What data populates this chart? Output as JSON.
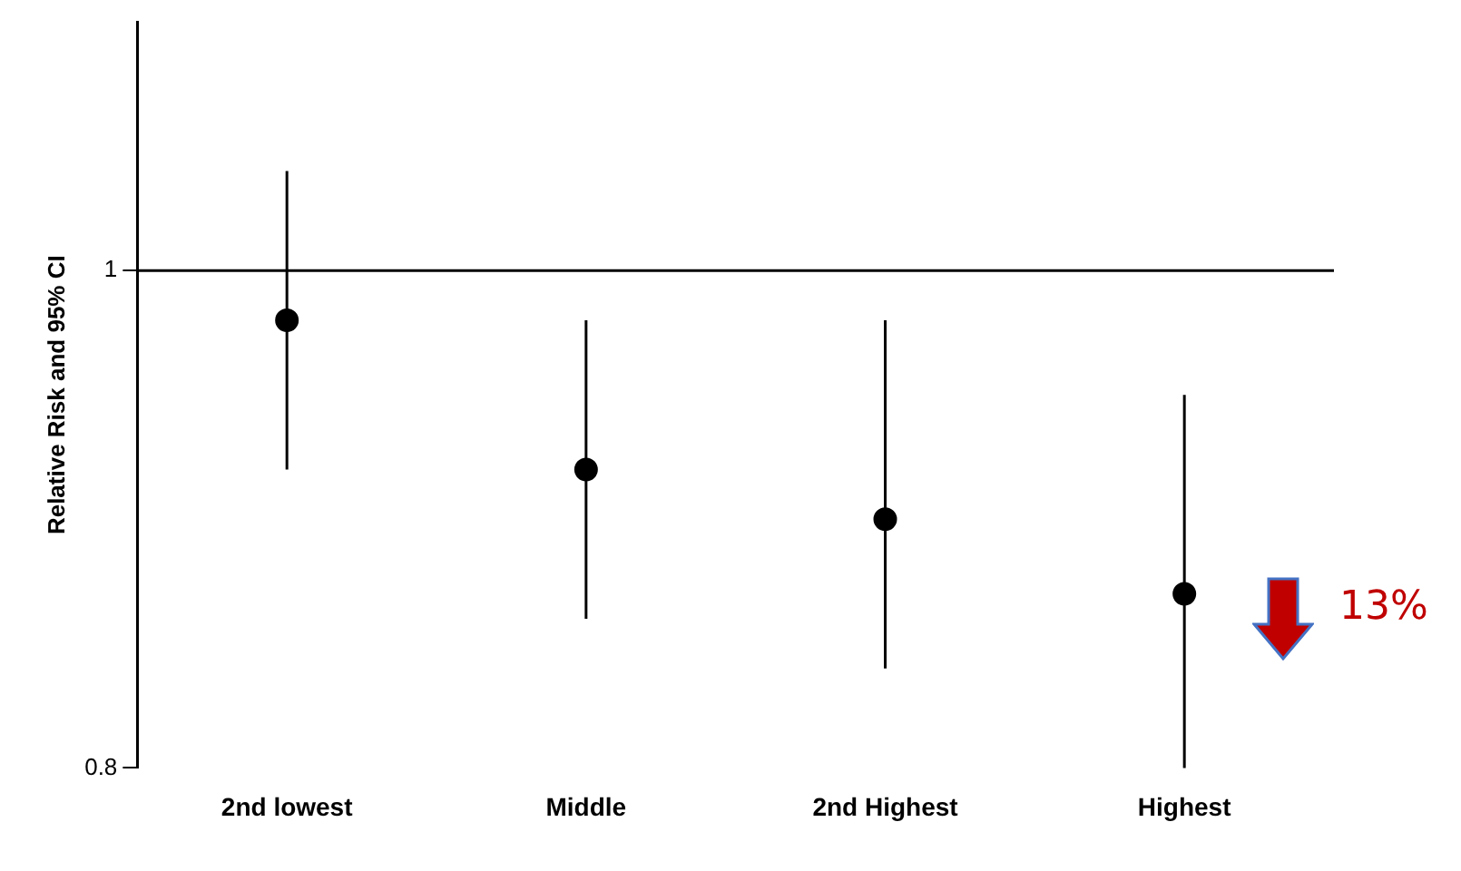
{
  "chart_data": {
    "type": "scatter",
    "ylabel": "Relative Risk and 95% CI",
    "categories": [
      "2nd lowest",
      "Middle",
      "2nd Highest",
      "Highest"
    ],
    "series": [
      {
        "color": "#000000",
        "values": [
          0.98,
          0.92,
          0.9,
          0.87
        ],
        "errors": [
          [
            0.92,
            1.04
          ],
          [
            0.86,
            0.98
          ],
          [
            0.84,
            0.98
          ],
          [
            0.8,
            0.95
          ]
        ]
      }
    ],
    "ylim": [
      0.8,
      1.1
    ],
    "yticks": [
      0.8,
      1
    ],
    "ref_lines": [
      {
        "axis": "y",
        "value": 1,
        "color": "#000000"
      }
    ],
    "annotations": [
      "13%"
    ],
    "marker": "circle",
    "grid": false,
    "legend": false
  }
}
